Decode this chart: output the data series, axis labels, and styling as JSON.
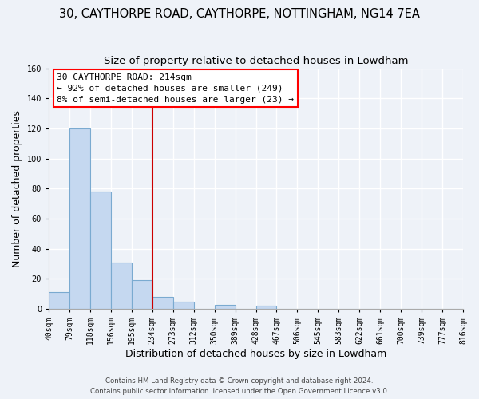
{
  "title": "30, CAYTHORPE ROAD, CAYTHORPE, NOTTINGHAM, NG14 7EA",
  "subtitle": "Size of property relative to detached houses in Lowdham",
  "xlabel": "Distribution of detached houses by size in Lowdham",
  "ylabel": "Number of detached properties",
  "bar_values": [
    11,
    120,
    78,
    31,
    19,
    8,
    5,
    0,
    3,
    0,
    2,
    0,
    0,
    0,
    0,
    0,
    0,
    0,
    0,
    0
  ],
  "bin_labels": [
    "40sqm",
    "79sqm",
    "118sqm",
    "156sqm",
    "195sqm",
    "234sqm",
    "273sqm",
    "312sqm",
    "350sqm",
    "389sqm",
    "428sqm",
    "467sqm",
    "506sqm",
    "545sqm",
    "583sqm",
    "622sqm",
    "661sqm",
    "700sqm",
    "739sqm",
    "777sqm",
    "816sqm"
  ],
  "bar_color": "#c5d8f0",
  "bar_edge_color": "#7aaad0",
  "vline_color": "#cc0000",
  "vline_position": 5,
  "ylim": [
    0,
    160
  ],
  "yticks": [
    0,
    20,
    40,
    60,
    80,
    100,
    120,
    140,
    160
  ],
  "annotation_text_line1": "30 CAYTHORPE ROAD: 214sqm",
  "annotation_text_line2": "← 92% of detached houses are smaller (249)",
  "annotation_text_line3": "8% of semi-detached houses are larger (23) →",
  "footer_line1": "Contains HM Land Registry data © Crown copyright and database right 2024.",
  "footer_line2": "Contains public sector information licensed under the Open Government Licence v3.0.",
  "bg_color": "#eef2f8",
  "grid_color": "#ffffff",
  "title_fontsize": 10.5,
  "subtitle_fontsize": 9.5,
  "axis_label_fontsize": 9,
  "tick_fontsize": 7,
  "annot_fontsize": 8
}
